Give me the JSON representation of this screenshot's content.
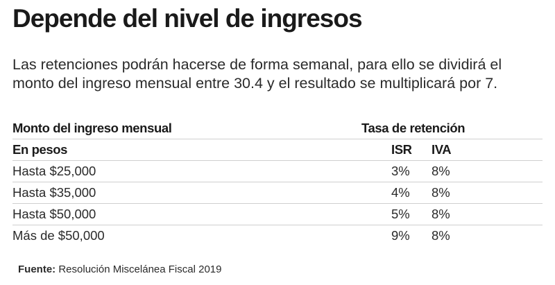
{
  "title": "Depende del nivel de ingresos",
  "intro": {
    "line1": "Las retenciones podrán hacerse de forma semanal, para ello se dividirá el",
    "line2": "monto del ingreso mensual entre 30.4 y el resultado se multiplicará por 7."
  },
  "table": {
    "header1": {
      "label": "Monto del ingreso mensual",
      "rate_label": "Tasa de retención"
    },
    "header2": {
      "label": "En pesos",
      "isr": "ISR",
      "iva": "IVA"
    },
    "rows": [
      {
        "label": "Hasta $25,000",
        "isr": "3%",
        "iva": "8%"
      },
      {
        "label": "Hasta $35,000",
        "isr": "4%",
        "iva": "8%"
      },
      {
        "label": "Hasta $50,000",
        "isr": "5%",
        "iva": "8%"
      },
      {
        "label": "Más de $50,000",
        "isr": "9%",
        "iva": "8%"
      }
    ]
  },
  "source": {
    "label": "Fuente:",
    "text": "Resolución Miscelánea Fiscal 2019"
  }
}
